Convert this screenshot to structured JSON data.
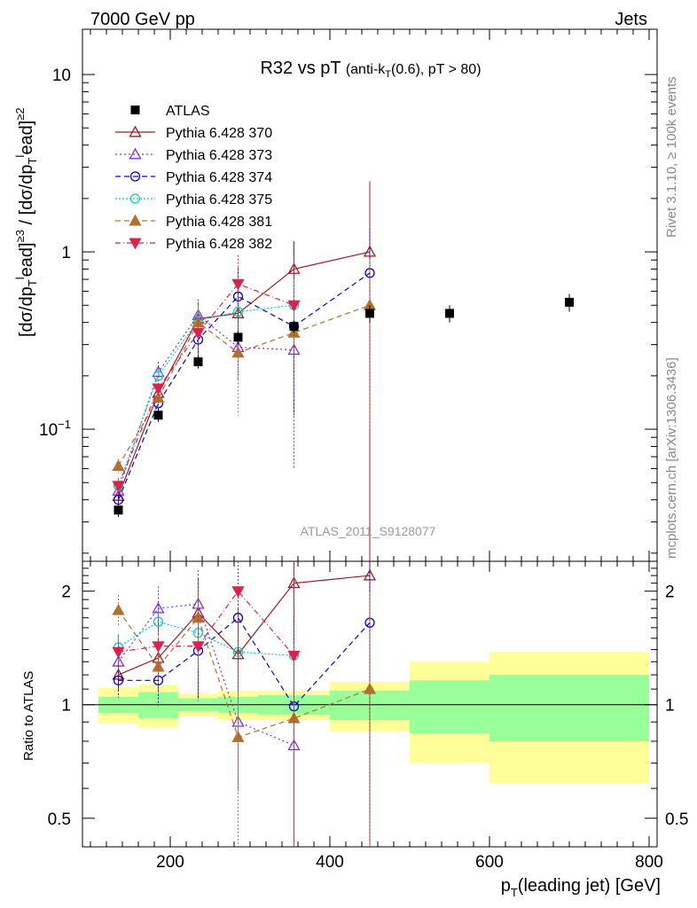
{
  "header": {
    "left": "7000 GeV pp",
    "right": "Jets"
  },
  "side_labels": {
    "rivet": "Rivet 3.1.10, ≥ 100k events",
    "mcplots": "mcplots.cern.ch [arXiv:1306.3436]"
  },
  "chart_data": {
    "type": "scatter",
    "title": "R32 vs pT (anti-kT(0.6), pT > 80)",
    "title_main": "R32 vs pT",
    "title_sub_pre": "(anti-k",
    "title_sub_idx": "T",
    "title_sub_post": "(0.6), pT > 80)",
    "analysis_id": "ATLAS_2011_S9128077",
    "xlabel": "p_T(leading jet) [GeV]",
    "xlabel_pre": "p",
    "xlabel_sub": "T",
    "xlabel_post": "(leading jet) [GeV]",
    "ylabel": "[dσ/dp_T^lead]^≥3 / [dσ/dp_T^lead]^≥2",
    "ratio_ylabel": "Ratio to ATLAS",
    "xlim": [
      90,
      810
    ],
    "ylim": [
      0.018,
      18
    ],
    "ylog": true,
    "ratio_ylim": [
      0.42,
      2.4
    ],
    "ratio_ylog": true,
    "x_ticks": [
      "200",
      "400",
      "600",
      "800"
    ],
    "y_ticks": [
      "10",
      "1",
      "10^-1"
    ],
    "ratio_ticks": [
      "2",
      "1",
      "0.5"
    ],
    "legend_position": "top-left",
    "data": {
      "name": "ATLAS",
      "color": "#000000",
      "x": [
        135,
        185,
        235,
        285,
        355,
        450,
        550,
        700
      ],
      "y": [
        0.035,
        0.12,
        0.24,
        0.33,
        0.38,
        0.45,
        0.45,
        0.52
      ],
      "yerr": [
        0.003,
        0.01,
        0.02,
        0.03,
        0.03,
        0.05,
        0.05,
        0.06
      ],
      "bins": [
        [
          110,
          160
        ],
        [
          160,
          210
        ],
        [
          210,
          260
        ],
        [
          260,
          310
        ],
        [
          310,
          400
        ],
        [
          400,
          500
        ],
        [
          500,
          600
        ],
        [
          600,
          800
        ]
      ],
      "band_stat": [
        0.05,
        0.08,
        0.04,
        0.05,
        0.06,
        0.09,
        0.16,
        0.2
      ],
      "band_total": [
        0.11,
        0.13,
        0.07,
        0.09,
        0.09,
        0.15,
        0.3,
        0.38
      ]
    },
    "series": [
      {
        "name": "Pythia 6.428 370",
        "color": "#a0191e",
        "dash": "",
        "marker": "triangle-up-open",
        "y": [
          0.042,
          0.16,
          0.42,
          0.45,
          0.8,
          1.0
        ],
        "yerr": [
          0.004,
          0.02,
          0.1,
          0.15,
          0.35,
          1.5
        ],
        "ratio": [
          1.2,
          1.33,
          1.75,
          1.36,
          2.1,
          2.2
        ]
      },
      {
        "name": "Pythia 6.428 373",
        "color": "#8a2be2",
        "dash": "2,3",
        "marker": "triangle-up-open",
        "y": [
          0.045,
          0.21,
          0.44,
          0.29,
          0.28
        ],
        "yerr": [
          0.005,
          0.03,
          0.1,
          0.1,
          0.15
        ],
        "ratio": [
          1.3,
          1.8,
          1.85,
          0.9,
          0.78
        ]
      },
      {
        "name": "Pythia 6.428 374",
        "color": "#0000dd",
        "dash": "6,4",
        "marker": "circle-open",
        "y": [
          0.04,
          0.14,
          0.32,
          0.56,
          0.38,
          0.76
        ],
        "yerr": [
          0.004,
          0.02,
          0.08,
          0.25,
          0.26,
          0.6
        ],
        "ratio": [
          1.16,
          1.16,
          1.39,
          1.7,
          0.99,
          1.65
        ]
      },
      {
        "name": "Pythia 6.428 375",
        "color": "#00d0c0",
        "dash": "2,2",
        "marker": "circle-open",
        "y": [
          0.048,
          0.2,
          0.41,
          0.46,
          0.5
        ],
        "yerr": [
          0.004,
          0.02,
          0.08,
          0.2,
          0.2
        ],
        "ratio": [
          1.42,
          1.66,
          1.55,
          1.38,
          1.35
        ]
      },
      {
        "name": "Pythia 6.428 381",
        "color": "#b07030",
        "dash": "6,4",
        "marker": "triangle-up-filled",
        "y": [
          0.062,
          0.15,
          0.4,
          0.27,
          0.35,
          0.5
        ],
        "yerr": [
          0.006,
          0.02,
          0.1,
          0.15,
          0.2,
          0.4
        ],
        "ratio": [
          1.78,
          1.26,
          1.7,
          0.82,
          0.92,
          1.1
        ]
      },
      {
        "name": "Pythia 6.428 382",
        "color": "#e0204a",
        "dash": "6,3,1,3",
        "marker": "triangle-down-filled",
        "y": [
          0.048,
          0.17,
          0.35,
          0.66,
          0.5
        ],
        "yerr": [
          0.005,
          0.03,
          0.1,
          0.3,
          0.44
        ],
        "ratio": [
          1.38,
          1.43,
          1.43,
          2.0,
          1.35
        ]
      }
    ]
  }
}
